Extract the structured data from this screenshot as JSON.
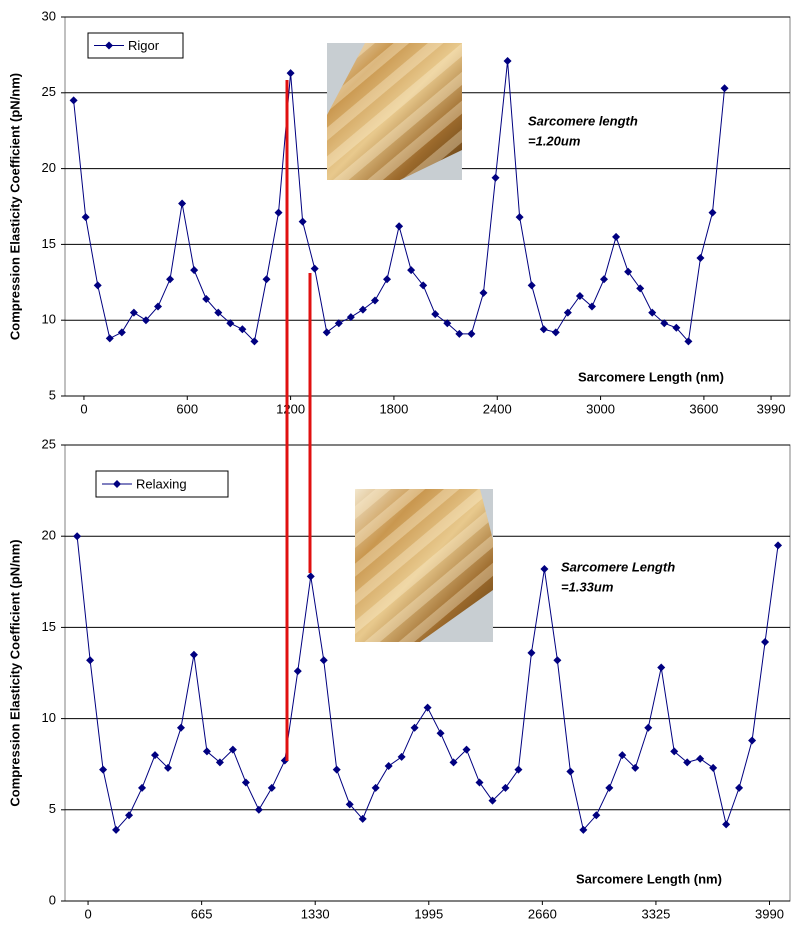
{
  "chart_data": [
    {
      "type": "line",
      "title": null,
      "y_label": "Compression Elasticity Coefficient (pN/nm)",
      "x_label": "Sarcomere Length (nm)",
      "annotation": [
        "Sarcomere length",
        "=1.20um"
      ],
      "x": [
        -60,
        10,
        80,
        150,
        220,
        290,
        360,
        430,
        500,
        570,
        640,
        710,
        780,
        850,
        920,
        990,
        1060,
        1130,
        1200,
        1270,
        1340,
        1410,
        1480,
        1550,
        1620,
        1690,
        1760,
        1830,
        1900,
        1970,
        2040,
        2110,
        2180,
        2250,
        2320,
        2390,
        2460,
        2530,
        2600,
        2670,
        2740,
        2810,
        2880,
        2950,
        3020,
        3090,
        3160,
        3230,
        3300,
        3370,
        3440,
        3510,
        3580,
        3650,
        3720
      ],
      "series": [
        {
          "name": "Rigor",
          "color": "#000080",
          "values": [
            24.5,
            16.8,
            12.3,
            8.8,
            9.2,
            10.5,
            10.0,
            10.9,
            12.7,
            17.7,
            13.3,
            11.4,
            10.5,
            9.8,
            9.4,
            8.6,
            12.7,
            17.1,
            26.3,
            16.5,
            13.4,
            9.2,
            9.8,
            10.2,
            10.7,
            11.3,
            12.7,
            16.2,
            13.3,
            12.3,
            10.4,
            9.8,
            9.1,
            9.1,
            11.8,
            19.4,
            27.1,
            16.8,
            12.3,
            9.4,
            9.2,
            10.5,
            11.6,
            10.9,
            12.7,
            15.5,
            13.2,
            12.1,
            10.5,
            9.8,
            9.5,
            8.6,
            14.1,
            17.1,
            25.3
          ]
        }
      ],
      "xlim": [
        -110,
        4100
      ],
      "xticks": [
        0,
        600,
        1200,
        1800,
        2400,
        3000,
        3600,
        3990
      ],
      "ylim": [
        5,
        30
      ],
      "yticks": [
        5,
        10,
        15,
        20,
        25,
        30
      ],
      "grid": true
    },
    {
      "type": "line",
      "title": null,
      "y_label": "Compression Elasticity Coefficient (pN/nm)",
      "x_label": "Sarcomere Length (nm)",
      "annotation": [
        "Sarcomere Length",
        "=1.33um"
      ],
      "x": [
        -64,
        12,
        88,
        164,
        240,
        316,
        392,
        468,
        544,
        620,
        696,
        772,
        848,
        924,
        1000,
        1076,
        1152,
        1228,
        1304,
        1380,
        1456,
        1532,
        1608,
        1684,
        1760,
        1836,
        1912,
        1988,
        2064,
        2140,
        2216,
        2292,
        2368,
        2444,
        2520,
        2596,
        2672,
        2748,
        2824,
        2900,
        2976,
        3052,
        3128,
        3204,
        3280,
        3356,
        3432,
        3508,
        3584,
        3660,
        3736,
        3812,
        3888,
        3964,
        4040
      ],
      "series": [
        {
          "name": "Relaxing",
          "color": "#000080",
          "values": [
            20.0,
            13.2,
            7.2,
            3.9,
            4.7,
            6.2,
            8.0,
            7.3,
            9.5,
            13.5,
            8.2,
            7.6,
            8.3,
            6.5,
            5.0,
            6.2,
            7.7,
            12.6,
            17.8,
            13.2,
            7.2,
            5.3,
            4.5,
            6.2,
            7.4,
            7.9,
            9.5,
            10.6,
            9.2,
            7.6,
            8.3,
            6.5,
            5.5,
            6.2,
            7.2,
            13.6,
            18.2,
            13.2,
            7.1,
            3.9,
            4.7,
            6.2,
            8.0,
            7.3,
            9.5,
            12.8,
            8.2,
            7.6,
            7.8,
            7.3,
            4.2,
            6.2,
            8.8,
            14.2,
            19.5
          ]
        }
      ],
      "xlim": [
        -135,
        4110
      ],
      "xticks": [
        0,
        665,
        1330,
        1995,
        2660,
        3325,
        3990
      ],
      "ylim": [
        0,
        25
      ],
      "yticks": [
        0,
        5,
        10,
        15,
        20,
        25
      ],
      "grid": true
    }
  ]
}
